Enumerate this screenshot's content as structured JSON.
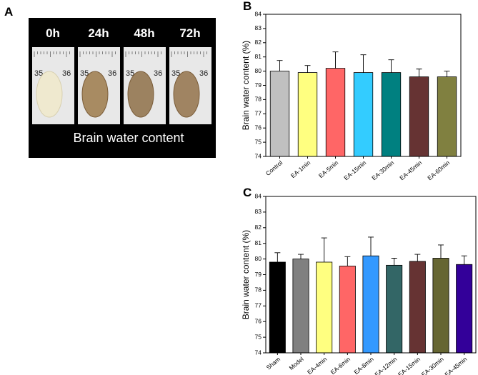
{
  "panel_a": {
    "label": "A",
    "times": [
      "0h",
      "24h",
      "48h",
      "72h"
    ],
    "ruler_labels": [
      "35",
      "36"
    ],
    "caption": "Brain water content"
  },
  "chart_data": [
    {
      "type": "bar",
      "panel_label": "B",
      "ylabel": "Brain water content (%)",
      "categories": [
        "Control",
        "EA-1min",
        "EA-5min",
        "EA-15min",
        "EA-30min",
        "EA-45min",
        "EA-60min"
      ],
      "values": [
        80.0,
        79.9,
        80.2,
        79.9,
        79.9,
        79.6,
        79.6
      ],
      "errors": [
        0.75,
        0.5,
        1.15,
        1.25,
        0.9,
        0.55,
        0.4
      ],
      "colors": [
        "#c0c0c0",
        "#ffff80",
        "#ff6666",
        "#33ccff",
        "#008080",
        "#663333",
        "#808040"
      ],
      "ylim": [
        74,
        84
      ],
      "yticks": [
        74,
        75,
        76,
        77,
        78,
        79,
        80,
        81,
        82,
        83,
        84
      ]
    },
    {
      "type": "bar",
      "panel_label": "C",
      "ylabel": "Brain water content (%)",
      "categories": [
        "Sham",
        "Model",
        "EA-4min",
        "EA-6min",
        "EA-8min",
        "EA-12min",
        "EA-15min",
        "EA-30min",
        "EA-45min"
      ],
      "values": [
        79.8,
        80.0,
        79.8,
        79.55,
        80.2,
        79.6,
        79.85,
        80.05,
        79.65
      ],
      "errors": [
        0.6,
        0.3,
        1.55,
        0.6,
        1.2,
        0.45,
        0.45,
        0.85,
        0.55
      ],
      "colors": [
        "#000000",
        "#808080",
        "#ffff80",
        "#ff6666",
        "#3399ff",
        "#336666",
        "#663333",
        "#666633",
        "#330099"
      ],
      "ylim": [
        74,
        84
      ],
      "yticks": [
        74,
        75,
        76,
        77,
        78,
        79,
        80,
        81,
        82,
        83,
        84
      ]
    }
  ]
}
